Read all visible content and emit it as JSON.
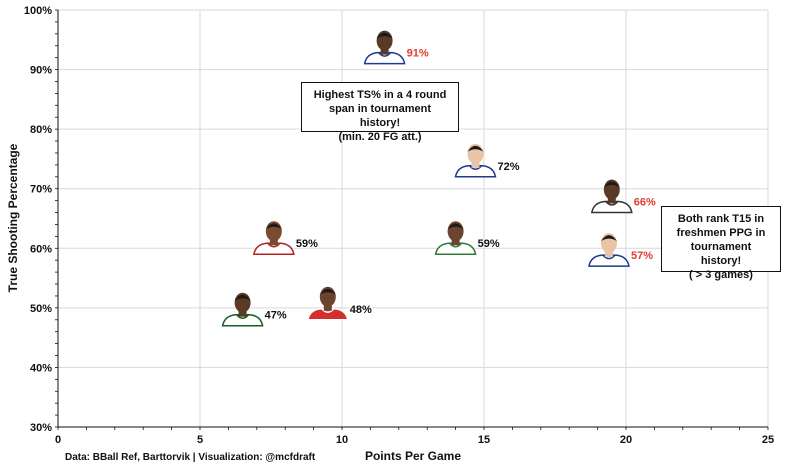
{
  "chart_data": {
    "type": "scatter",
    "xlabel": "Points Per Game",
    "ylabel": "True Shooting Percentage",
    "xlim": [
      0,
      25
    ],
    "ylim": [
      30,
      100
    ],
    "x_ticks": [
      "0",
      "5",
      "10",
      "15",
      "20",
      "25"
    ],
    "y_ticks": [
      "30%",
      "40%",
      "50%",
      "60%",
      "70%",
      "80%",
      "90%",
      "100%"
    ],
    "grid": true,
    "points": [
      {
        "x": 11.5,
        "y": 91,
        "label": "91%",
        "highlight": true,
        "jersey": "#ffffff",
        "trim": "#1f3a93",
        "skin": "#5a3a26"
      },
      {
        "x": 14.7,
        "y": 72,
        "label": "72%",
        "highlight": false,
        "jersey": "#ffffff",
        "trim": "#1f3a93",
        "skin": "#e8c4a8"
      },
      {
        "x": 19.5,
        "y": 66,
        "label": "66%",
        "highlight": true,
        "jersey": "#ffffff",
        "trim": "#333333",
        "skin": "#5a3a26"
      },
      {
        "x": 7.6,
        "y": 59,
        "label": "59%",
        "highlight": false,
        "jersey": "#ffffff",
        "trim": "#b22222",
        "skin": "#7a4b30"
      },
      {
        "x": 14.0,
        "y": 59,
        "label": "59%",
        "highlight": false,
        "jersey": "#ffffff",
        "trim": "#2e7d32",
        "skin": "#6b4430"
      },
      {
        "x": 19.4,
        "y": 57,
        "label": "57%",
        "highlight": true,
        "jersey": "#ffffff",
        "trim": "#1f3a93",
        "skin": "#e8c4a8"
      },
      {
        "x": 6.5,
        "y": 47,
        "label": "47%",
        "highlight": false,
        "jersey": "#ffffff",
        "trim": "#1b5e20",
        "skin": "#5a3a26"
      },
      {
        "x": 9.5,
        "y": 48,
        "label": "48%",
        "highlight": false,
        "jersey": "#d32f2f",
        "trim": "#ffffff",
        "skin": "#6b4430"
      }
    ],
    "annotations": [
      {
        "lines": [
          "Highest TS% in a 4 round",
          "span in tournament history!",
          "(min. 20 FG att.)"
        ]
      },
      {
        "lines": [
          "Both rank T15 in",
          "freshmen PPG in",
          "tournament history!",
          "( > 3 games)"
        ]
      }
    ],
    "source": "Data: BBall Ref, Barttorvik | Visualization: @mcfdraft",
    "colors": {
      "highlight": "#e03c31",
      "normal": "#111111",
      "grid": "#d9d9d9"
    }
  }
}
